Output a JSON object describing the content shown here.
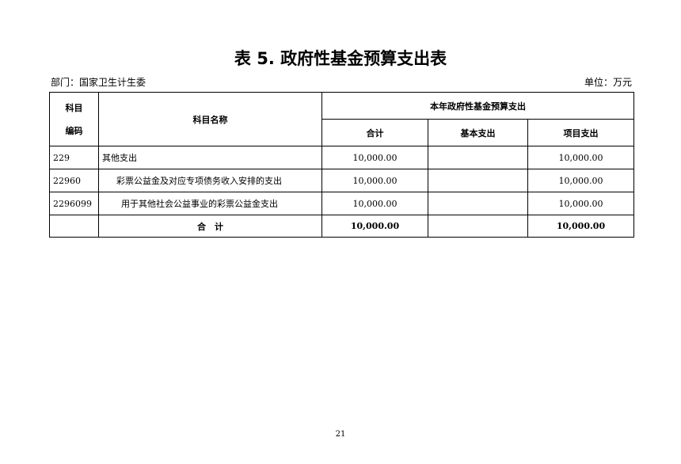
{
  "title": "表 5. 政府性基金预算支出表",
  "department": "部门：国家卫生计生委",
  "unit": "单位：万元",
  "table": {
    "header": {
      "code": "科目\n编码",
      "code_line1": "科目",
      "code_line2": "编码",
      "name": "科目名称",
      "group": "本年政府性基金预算支出",
      "total": "合计",
      "basic": "基本支出",
      "project": "项目支出"
    },
    "rows": [
      {
        "code": "229",
        "name": "其他支出",
        "total": "10,000.00",
        "basic": "",
        "project": "10,000.00"
      },
      {
        "code": "22960",
        "name": "彩票公益金及对应专项债务收入安排的支出",
        "total": "10,000.00",
        "basic": "",
        "project": "10,000.00"
      },
      {
        "code": "2296099",
        "name": "用于其他社会公益事业的彩票公益金支出",
        "total": "10,000.00",
        "basic": "",
        "project": "10,000.00"
      }
    ],
    "sum": {
      "label": "合　计",
      "total": "10,000.00",
      "basic": "",
      "project": "10,000.00"
    }
  },
  "page_number": "21"
}
